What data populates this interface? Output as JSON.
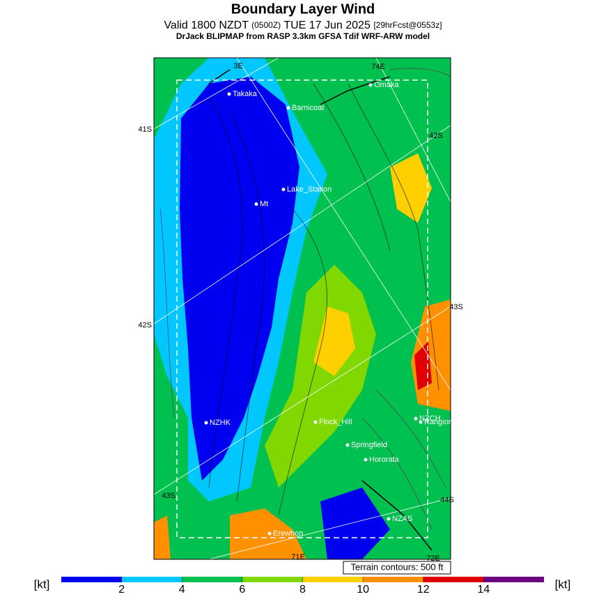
{
  "header": {
    "title": "Boundary Layer Wind",
    "valid": "Valid 1800 NZDT",
    "utc": "(0500Z)",
    "date": "TUE 17 Jun 2025",
    "forecast": "[29hrFcst@0553z]",
    "model": "DrJack BLIPMAP from RASP 3.3km GFSA Tdif WRF-ARW model"
  },
  "map": {
    "places": [
      "Takaka",
      "Barnicoat",
      "Omaka",
      "Lake_Station",
      "Mt",
      "NZHK",
      "Flock_Hill",
      "NZCH",
      "Rangiora",
      "Springfield",
      "Hororata",
      "NZAS",
      "Erewhon"
    ],
    "graticule_labels": [
      "3E",
      "74E",
      "41S",
      "42S",
      "42S",
      "43S",
      "43S",
      "44S",
      "71E",
      "72E"
    ],
    "terrain_note": "Terrain contours: 500 ft"
  },
  "colorbar": {
    "unit": "[kt]",
    "range": [
      0,
      16
    ],
    "ticks": [
      2,
      4,
      6,
      8,
      10,
      12,
      14
    ],
    "colors": [
      "#0000f0",
      "#00c8ff",
      "#00c050",
      "#80d800",
      "#ffd000",
      "#ff9000",
      "#e00000",
      "#6a0080"
    ]
  }
}
